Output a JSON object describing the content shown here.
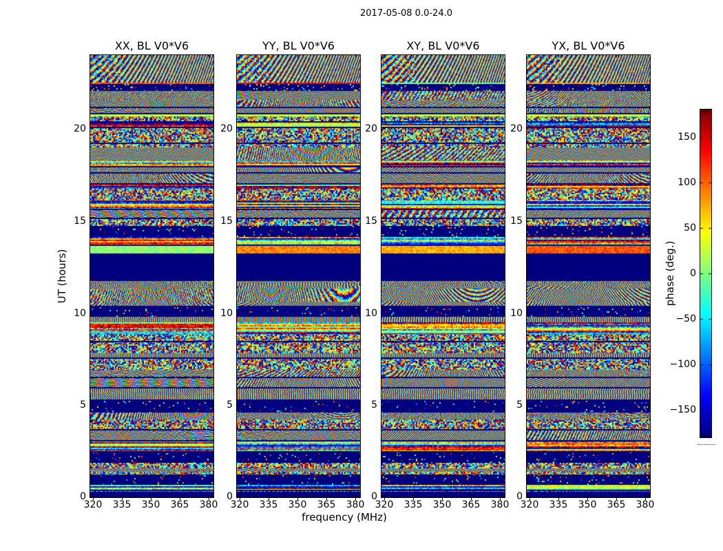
{
  "figure": {
    "suptitle": "2017-05-08 0.0-24.0",
    "xlabel": "frequency (MHz)",
    "ylabel": "UT (hours)"
  },
  "chart_data": {
    "type": "heatmap",
    "suptitle": "2017-05-08 0.0-24.0",
    "subplots": [
      {
        "title": "XX, BL V0*V6"
      },
      {
        "title": "YY, BL V0*V6"
      },
      {
        "title": "XY, BL V0*V6"
      },
      {
        "title": "YX, BL V0*V6"
      }
    ],
    "xlabel": "frequency (MHz)",
    "ylabel": "UT (hours)",
    "x_ticks": [
      320,
      335,
      350,
      365,
      380
    ],
    "x_range": [
      318.6,
      382.5
    ],
    "y_ticks": [
      0,
      5,
      10,
      15,
      20
    ],
    "y_range": [
      0,
      24
    ],
    "grid": false,
    "colormap": "jet",
    "colorbar": {
      "label": "phase (deg.)",
      "ticks": [
        150,
        100,
        50,
        0,
        -50,
        -100,
        -150
      ],
      "range": [
        -180,
        180
      ],
      "position": "right"
    },
    "content_description": [
      "four time-frequency waterfall panels of visibility phase for polarization products XX, YY, XY, YX on baseline V0*V6",
      "mostly random phase speckle (full -180..+180 range, jet colors) arranged in narrow horizontal time bands",
      "solid flagged dark-blue block (phase pinned at -180) from UT ~11.8 to ~13.3 hours in every panel",
      "thin dark-blue flagged rows separating the time bands throughout",
      "coherent diagonal interference fringes near UT ~22-24 hours and in scattered bands",
      "occasional solid bright green / orange / red coherent rows"
    ]
  }
}
